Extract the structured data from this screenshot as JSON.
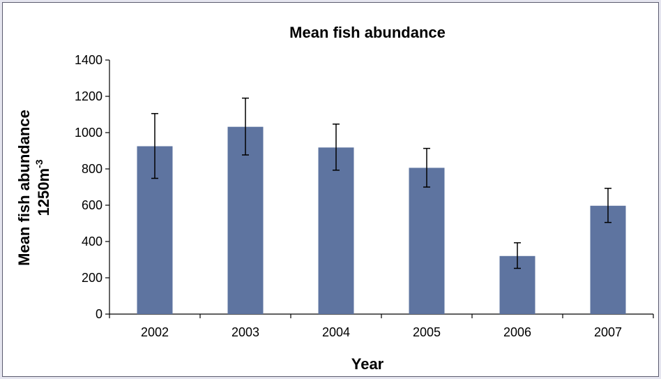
{
  "chart_data": {
    "type": "bar",
    "title": "Mean fish abundance",
    "xlabel": "Year",
    "ylabel": "Mean fish abundance",
    "ylabel_line2": "1250m",
    "ylabel_line2_sup": "-3",
    "categories": [
      "2002",
      "2003",
      "2004",
      "2005",
      "2006",
      "2007"
    ],
    "values": [
      925,
      1032,
      918,
      806,
      320,
      597
    ],
    "error_upper": [
      1105,
      1190,
      1047,
      913,
      393,
      693
    ],
    "error_lower": [
      748,
      877,
      793,
      700,
      252,
      505
    ],
    "ylim": [
      0,
      1400
    ],
    "yticks": [
      0,
      200,
      400,
      600,
      800,
      1000,
      1200,
      1400
    ],
    "bar_color": "#5e74a0",
    "grid": false,
    "legend": "none"
  }
}
